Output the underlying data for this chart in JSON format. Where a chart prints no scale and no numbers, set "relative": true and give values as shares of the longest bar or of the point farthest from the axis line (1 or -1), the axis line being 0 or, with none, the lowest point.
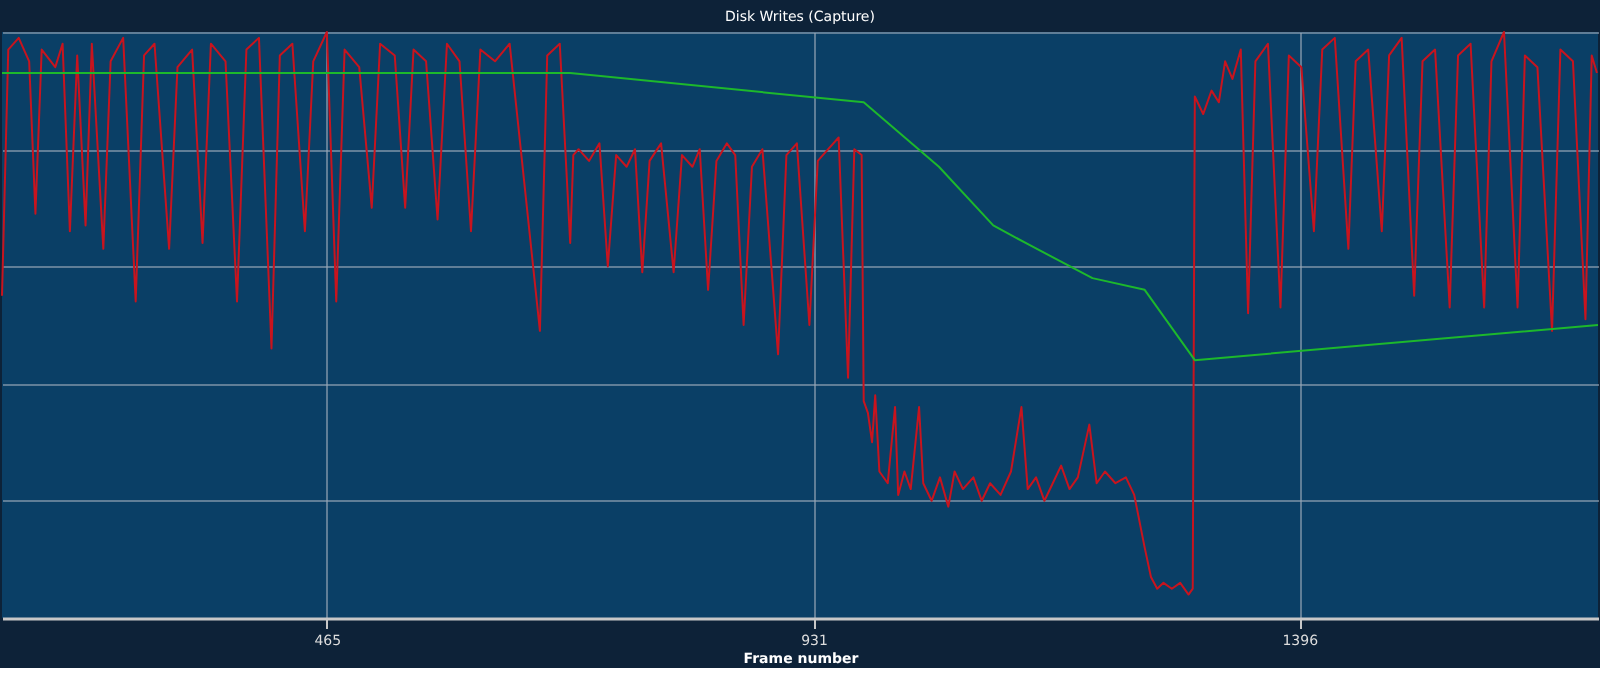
{
  "chart_data": {
    "type": "line",
    "title": "Disk Writes (Capture)",
    "xlabel": "Frame number",
    "relative": true,
    "xlim": [
      154,
      1682
    ],
    "xticks": [
      465,
      931,
      1396
    ],
    "grid": true,
    "marker": "none",
    "line_style": "solid",
    "series": [
      {
        "color": "#c8141e",
        "x": [
          154,
          160,
          170,
          180,
          186,
          192,
          205,
          212,
          219,
          226,
          234,
          240,
          251,
          258,
          270,
          282,
          290,
          300,
          314,
          322,
          336,
          346,
          354,
          368,
          379,
          388,
          400,
          412,
          420,
          432,
          444,
          452,
          465,
          474,
          482,
          496,
          508,
          516,
          530,
          540,
          548,
          560,
          571,
          580,
          592,
          603,
          612,
          626,
          640,
          669,
          676,
          688,
          698,
          701,
          706,
          716,
          726,
          734,
          742,
          752,
          760,
          767,
          774,
          785,
          797,
          805,
          815,
          822,
          830,
          838,
          848,
          856,
          864,
          872,
          882,
          897,
          905,
          915,
          927,
          935,
          945,
          955,
          964,
          970,
          977,
          979,
          983,
          987,
          990,
          994,
          1002,
          1009,
          1012,
          1018,
          1024,
          1032,
          1036,
          1044,
          1052,
          1060,
          1066,
          1074,
          1084,
          1092,
          1100,
          1110,
          1120,
          1130,
          1136,
          1144,
          1152,
          1160,
          1168,
          1176,
          1184,
          1195,
          1202,
          1210,
          1220,
          1230,
          1238,
          1248,
          1254,
          1260,
          1266,
          1274,
          1282,
          1290,
          1294,
          1296,
          1304,
          1312,
          1319,
          1325,
          1332,
          1340,
          1347,
          1354,
          1366,
          1378,
          1386,
          1398,
          1410,
          1418,
          1430,
          1443,
          1450,
          1462,
          1475,
          1482,
          1494,
          1506,
          1514,
          1526,
          1540,
          1548,
          1560,
          1573,
          1580,
          1592,
          1605,
          1612,
          1624,
          1638,
          1646,
          1658,
          1670,
          1676,
          1681
        ],
        "values": [
          0.55,
          0.97,
          0.99,
          0.95,
          0.69,
          0.97,
          0.94,
          0.98,
          0.66,
          0.96,
          0.67,
          0.98,
          0.63,
          0.95,
          0.99,
          0.54,
          0.96,
          0.98,
          0.63,
          0.94,
          0.97,
          0.64,
          0.98,
          0.95,
          0.54,
          0.97,
          0.99,
          0.46,
          0.96,
          0.98,
          0.66,
          0.95,
          1.0,
          0.54,
          0.97,
          0.94,
          0.7,
          0.98,
          0.96,
          0.7,
          0.97,
          0.95,
          0.68,
          0.98,
          0.95,
          0.66,
          0.97,
          0.95,
          0.98,
          0.49,
          0.96,
          0.98,
          0.64,
          0.79,
          0.8,
          0.78,
          0.81,
          0.6,
          0.79,
          0.77,
          0.8,
          0.59,
          0.78,
          0.81,
          0.59,
          0.79,
          0.77,
          0.8,
          0.56,
          0.78,
          0.81,
          0.79,
          0.5,
          0.77,
          0.8,
          0.45,
          0.79,
          0.81,
          0.5,
          0.78,
          0.8,
          0.82,
          0.41,
          0.8,
          0.79,
          0.37,
          0.35,
          0.3,
          0.38,
          0.25,
          0.23,
          0.36,
          0.21,
          0.25,
          0.22,
          0.36,
          0.23,
          0.2,
          0.24,
          0.19,
          0.25,
          0.22,
          0.24,
          0.2,
          0.23,
          0.21,
          0.25,
          0.36,
          0.22,
          0.24,
          0.2,
          0.23,
          0.26,
          0.22,
          0.24,
          0.33,
          0.23,
          0.25,
          0.23,
          0.24,
          0.21,
          0.12,
          0.07,
          0.05,
          0.06,
          0.05,
          0.06,
          0.04,
          0.05,
          0.89,
          0.86,
          0.9,
          0.88,
          0.95,
          0.92,
          0.97,
          0.52,
          0.95,
          0.98,
          0.53,
          0.96,
          0.94,
          0.66,
          0.97,
          0.99,
          0.63,
          0.95,
          0.97,
          0.66,
          0.96,
          0.99,
          0.55,
          0.95,
          0.97,
          0.53,
          0.96,
          0.98,
          0.53,
          0.95,
          1.0,
          0.53,
          0.96,
          0.94,
          0.49,
          0.97,
          0.95,
          0.51,
          0.96,
          0.93
        ]
      },
      {
        "color": "#1db82c",
        "x": [
          154,
          698,
          979,
          1051,
          1103,
          1134,
          1198,
          1248,
          1296,
          1682
        ],
        "values": [
          0.93,
          0.93,
          0.88,
          0.77,
          0.67,
          0.64,
          0.58,
          0.56,
          0.44,
          0.5
        ]
      }
    ]
  }
}
